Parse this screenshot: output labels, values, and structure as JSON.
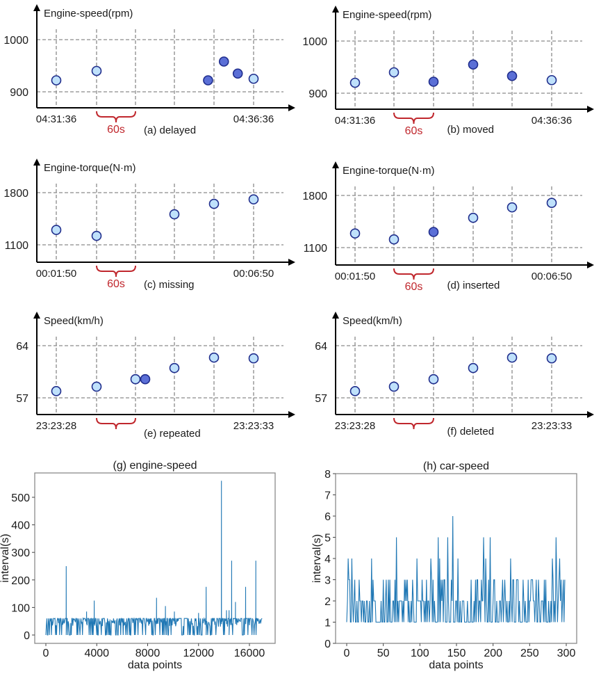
{
  "chart_data": [
    {
      "type": "scatter",
      "id": "a",
      "ylabel": "Engine-speed(rpm)",
      "yticks": [
        900,
        1000
      ],
      "ylim": [
        870,
        1060
      ],
      "x_start_label": "04:31:36",
      "x_end_label": "04:36:36",
      "gap_label": "60s",
      "caption": "(a) delayed",
      "grid_slots": 6,
      "points": [
        {
          "slot": 0,
          "y": 922,
          "kind": "normal"
        },
        {
          "slot": 1,
          "y": 940,
          "kind": "normal"
        },
        {
          "slot": 3.85,
          "y": 922,
          "kind": "anomaly"
        },
        {
          "slot": 4.25,
          "y": 958,
          "kind": "anomaly"
        },
        {
          "slot": 4.6,
          "y": 935,
          "kind": "anomaly"
        },
        {
          "slot": 5,
          "y": 925,
          "kind": "normal"
        }
      ]
    },
    {
      "type": "scatter",
      "id": "b",
      "ylabel": "Engine-speed(rpm)",
      "yticks": [
        900,
        1000
      ],
      "ylim": [
        870,
        1060
      ],
      "x_start_label": "04:31:36",
      "x_end_label": "04:36:36",
      "gap_label": "60s",
      "caption": "(b) moved",
      "grid_slots": 6,
      "points": [
        {
          "slot": 0,
          "y": 920,
          "kind": "normal"
        },
        {
          "slot": 1,
          "y": 940,
          "kind": "normal"
        },
        {
          "slot": 2,
          "y": 922,
          "kind": "anomaly"
        },
        {
          "slot": 3,
          "y": 955,
          "kind": "anomaly"
        },
        {
          "slot": 4,
          "y": 933,
          "kind": "anomaly"
        },
        {
          "slot": 5,
          "y": 925,
          "kind": "normal"
        }
      ]
    },
    {
      "type": "scatter",
      "id": "c",
      "ylabel": "Engine-torque(N·m)",
      "yticks": [
        1100,
        1800
      ],
      "ylim": [
        880,
        2350
      ],
      "x_start_label": "00:01:50",
      "x_end_label": "00:06:50",
      "gap_label": "60s",
      "caption": "(c) missing",
      "grid_slots": 6,
      "points": [
        {
          "slot": 0,
          "y": 1300,
          "kind": "normal"
        },
        {
          "slot": 1,
          "y": 1220,
          "kind": "normal"
        },
        {
          "slot": 3,
          "y": 1510,
          "kind": "normal"
        },
        {
          "slot": 4,
          "y": 1650,
          "kind": "normal"
        },
        {
          "slot": 5,
          "y": 1710,
          "kind": "normal"
        }
      ]
    },
    {
      "type": "scatter",
      "id": "d",
      "ylabel": "Engine-torque(N·m)",
      "yticks": [
        1100,
        1800
      ],
      "ylim": [
        880,
        2350
      ],
      "x_start_label": "00:01:50",
      "x_end_label": "00:06:50",
      "gap_label": "60s",
      "caption": "(d) inserted",
      "grid_slots": 6,
      "points": [
        {
          "slot": 0,
          "y": 1290,
          "kind": "normal"
        },
        {
          "slot": 1,
          "y": 1210,
          "kind": "normal"
        },
        {
          "slot": 2,
          "y": 1310,
          "kind": "anomaly"
        },
        {
          "slot": 3,
          "y": 1500,
          "kind": "normal"
        },
        {
          "slot": 4,
          "y": 1640,
          "kind": "normal"
        },
        {
          "slot": 5,
          "y": 1700,
          "kind": "normal"
        }
      ]
    },
    {
      "type": "scatter",
      "id": "e",
      "ylabel": "Speed(km/h)",
      "yticks": [
        57,
        64
      ],
      "ylim": [
        54.8,
        68.7
      ],
      "x_start_label": "23:23:28",
      "x_end_label": "23:23:33",
      "gap_label": "",
      "caption": "(e) repeated",
      "grid_slots": 6,
      "points": [
        {
          "slot": 0,
          "y": 57.9,
          "kind": "normal"
        },
        {
          "slot": 1,
          "y": 58.5,
          "kind": "normal"
        },
        {
          "slot": 2,
          "y": 59.5,
          "kind": "normal"
        },
        {
          "slot": 2.25,
          "y": 59.5,
          "kind": "anomaly"
        },
        {
          "slot": 3,
          "y": 61.0,
          "kind": "normal"
        },
        {
          "slot": 4,
          "y": 62.4,
          "kind": "normal"
        },
        {
          "slot": 5,
          "y": 62.3,
          "kind": "normal"
        }
      ]
    },
    {
      "type": "scatter",
      "id": "f",
      "ylabel": "Speed(km/h)",
      "yticks": [
        57,
        64
      ],
      "ylim": [
        54.8,
        68.7
      ],
      "x_start_label": "23:23:28",
      "x_end_label": "23:23:33",
      "gap_label": "",
      "caption": "(f) deleted",
      "grid_slots": 6,
      "points": [
        {
          "slot": 0,
          "y": 57.9,
          "kind": "normal"
        },
        {
          "slot": 1,
          "y": 58.5,
          "kind": "normal"
        },
        {
          "slot": 2,
          "y": 59.5,
          "kind": "normal"
        },
        {
          "slot": 3,
          "y": 61.0,
          "kind": "normal"
        },
        {
          "slot": 4,
          "y": 62.4,
          "kind": "normal"
        },
        {
          "slot": 5,
          "y": 62.3,
          "kind": "normal"
        }
      ]
    },
    {
      "type": "line",
      "id": "g",
      "title": "(g) engine-speed",
      "xlabel": "data points",
      "ylabel": "interval(s)",
      "xlim": [
        -700,
        18000
      ],
      "ylim": [
        -30,
        590
      ],
      "xticks": [
        0,
        4000,
        8000,
        12000,
        16000
      ],
      "yticks": [
        0,
        100,
        200,
        300,
        400,
        500
      ],
      "color": "#1f77b4",
      "approximate_sample": true,
      "note": "spike positions read from the figure; the dense 0-60s baseline between spikes is stylized, not extracted",
      "spikes": [
        {
          "x": 1600,
          "y": 250
        },
        {
          "x": 3200,
          "y": 85
        },
        {
          "x": 3800,
          "y": 125
        },
        {
          "x": 8700,
          "y": 135
        },
        {
          "x": 9400,
          "y": 105
        },
        {
          "x": 10100,
          "y": 85
        },
        {
          "x": 12000,
          "y": 80
        },
        {
          "x": 12600,
          "y": 175
        },
        {
          "x": 13800,
          "y": 560
        },
        {
          "x": 14200,
          "y": 90
        },
        {
          "x": 14400,
          "y": 90
        },
        {
          "x": 14600,
          "y": 270
        },
        {
          "x": 14900,
          "y": 120
        },
        {
          "x": 15700,
          "y": 175
        },
        {
          "x": 16500,
          "y": 270
        }
      ],
      "n_points": 17000,
      "baseline_levels": [
        0,
        30,
        60
      ]
    },
    {
      "type": "line",
      "id": "h",
      "title": "(h) car-speed",
      "xlabel": "data points",
      "ylabel": "interval(s)",
      "xlim": [
        -15,
        315
      ],
      "ylim": [
        0,
        8
      ],
      "xticks": [
        0,
        50,
        100,
        150,
        200,
        250,
        300
      ],
      "yticks": [
        0,
        1,
        2,
        3,
        4,
        5,
        6,
        7,
        8
      ],
      "color": "#1f77b4",
      "approximate_sample": true,
      "note": "peak values and approximate positions read from the figure; the 1-3s baseline between peaks is stylized, not extracted",
      "peaks": [
        {
          "x": 2,
          "y": 4
        },
        {
          "x": 7,
          "y": 4
        },
        {
          "x": 34,
          "y": 4
        },
        {
          "x": 68,
          "y": 5
        },
        {
          "x": 96,
          "y": 4
        },
        {
          "x": 115,
          "y": 4
        },
        {
          "x": 125,
          "y": 5
        },
        {
          "x": 127,
          "y": 4
        },
        {
          "x": 138,
          "y": 5
        },
        {
          "x": 145,
          "y": 6
        },
        {
          "x": 152,
          "y": 4
        },
        {
          "x": 187,
          "y": 5
        },
        {
          "x": 190,
          "y": 4
        },
        {
          "x": 196,
          "y": 5
        },
        {
          "x": 224,
          "y": 4
        },
        {
          "x": 281,
          "y": 4
        },
        {
          "x": 286,
          "y": 5
        },
        {
          "x": 291,
          "y": 4
        }
      ],
      "n_points": 299
    }
  ]
}
